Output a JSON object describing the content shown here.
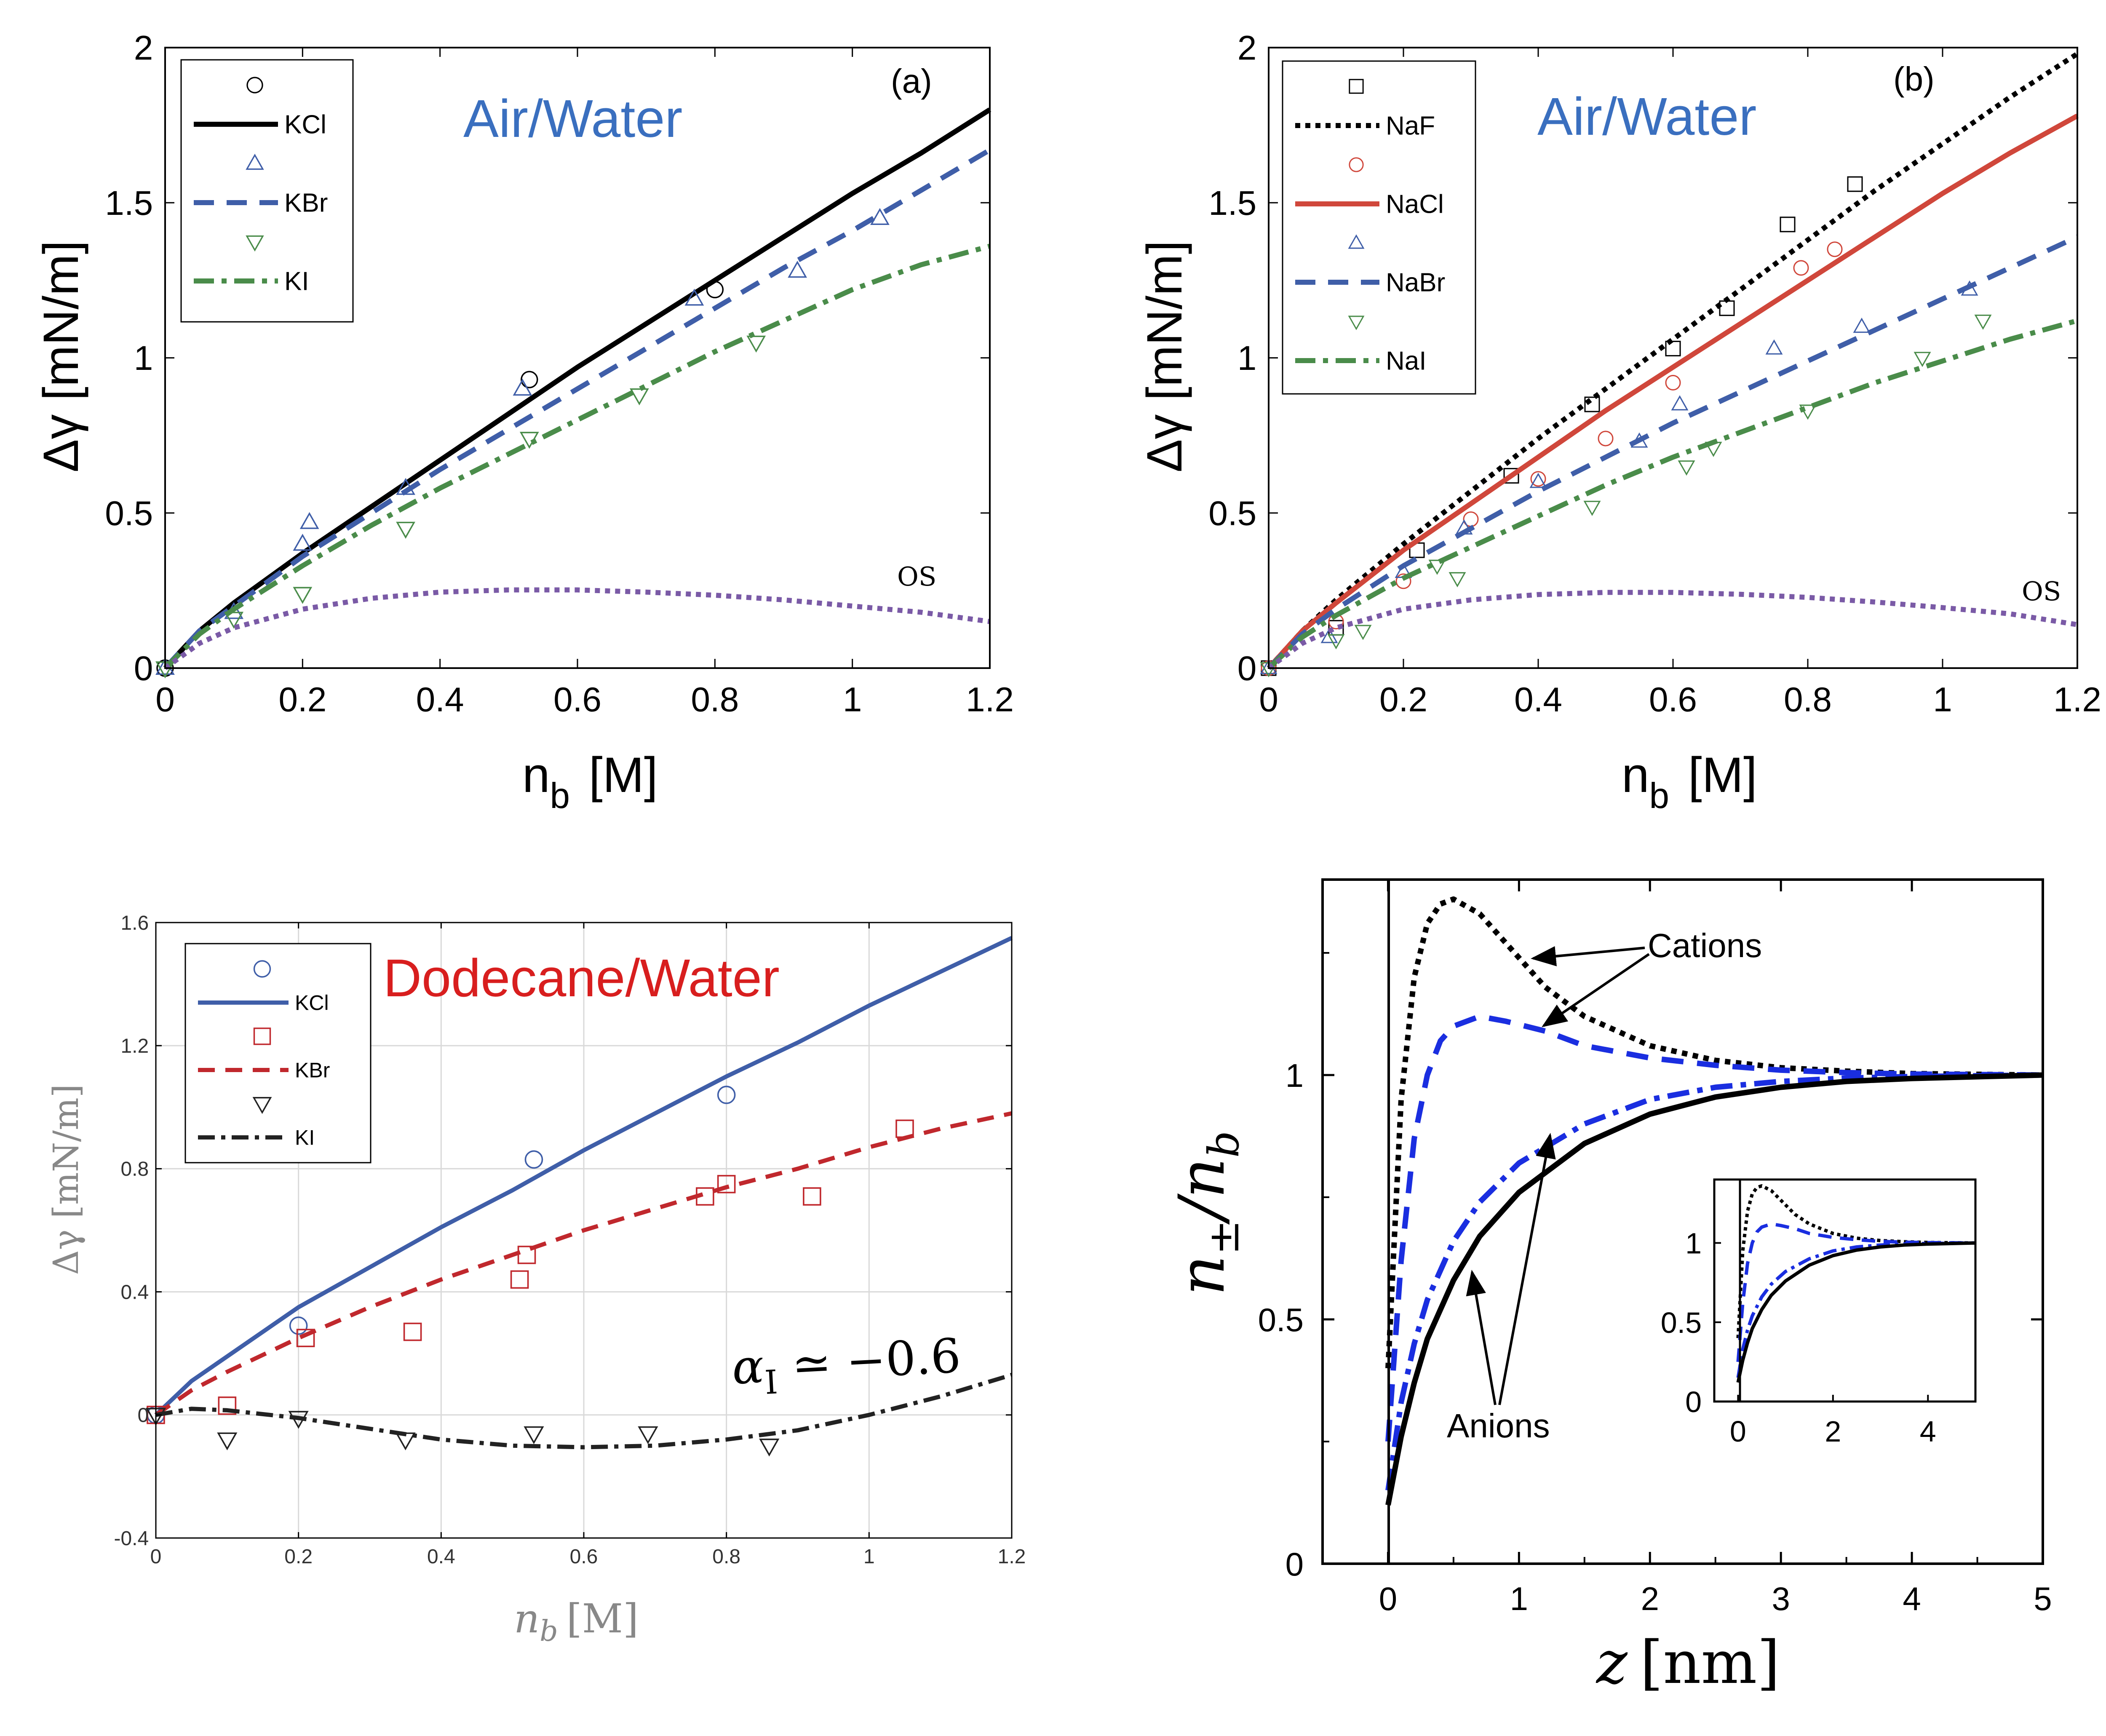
{
  "chart_data": [
    {
      "type": "line",
      "panel_label": "(a)",
      "annotation": "Air/Water",
      "xlabel_main": "n",
      "xlabel_sub": "b",
      "xlabel_unit": "[M]",
      "ylabel": "Δγ [mN/m]",
      "xlim": [
        0,
        1.2
      ],
      "ylim": [
        0,
        2
      ],
      "xticks": [
        "0",
        "0.2",
        "0.4",
        "0.6",
        "0.8",
        "1",
        "1.2"
      ],
      "yticks": [
        "0",
        "0.5",
        "1",
        "1.5",
        "2"
      ],
      "grid": false,
      "legend_position": "top-left",
      "series": [
        {
          "name": "KCl",
          "color": "#000000",
          "dash": "solid",
          "marker": "circle",
          "curve_x": [
            0,
            0.05,
            0.1,
            0.2,
            0.3,
            0.4,
            0.5,
            0.6,
            0.7,
            0.8,
            0.9,
            1.0,
            1.1,
            1.2
          ],
          "curve_y": [
            0,
            0.12,
            0.21,
            0.37,
            0.52,
            0.67,
            0.82,
            0.97,
            1.11,
            1.25,
            1.39,
            1.53,
            1.66,
            1.8
          ],
          "points_x": [
            0,
            0.53,
            0.8
          ],
          "points_y": [
            0,
            0.93,
            1.22
          ]
        },
        {
          "name": "KBr",
          "color": "#3f5ea8",
          "dash": "dashed",
          "marker": "triangle-up",
          "curve_x": [
            0,
            0.05,
            0.1,
            0.2,
            0.3,
            0.4,
            0.5,
            0.6,
            0.7,
            0.8,
            0.9,
            1.0,
            1.1,
            1.2
          ],
          "curve_y": [
            0,
            0.12,
            0.2,
            0.36,
            0.5,
            0.64,
            0.77,
            0.9,
            1.03,
            1.16,
            1.29,
            1.41,
            1.54,
            1.67
          ],
          "points_x": [
            0,
            0.1,
            0.2,
            0.21,
            0.35,
            0.52,
            0.77,
            0.92,
            1.04
          ],
          "points_y": [
            0,
            0.18,
            0.4,
            0.47,
            0.58,
            0.9,
            1.19,
            1.28,
            1.45
          ]
        },
        {
          "name": "KI",
          "color": "#4a8c4a",
          "dash": "dashdot",
          "marker": "triangle-down",
          "curve_x": [
            0,
            0.05,
            0.1,
            0.2,
            0.3,
            0.4,
            0.5,
            0.6,
            0.7,
            0.8,
            0.9,
            1.0,
            1.1,
            1.2
          ],
          "curve_y": [
            0,
            0.11,
            0.19,
            0.33,
            0.46,
            0.58,
            0.69,
            0.8,
            0.91,
            1.02,
            1.12,
            1.22,
            1.3,
            1.36
          ],
          "points_x": [
            0,
            0.1,
            0.2,
            0.35,
            0.53,
            0.69,
            0.86
          ],
          "points_y": [
            0,
            0.16,
            0.24,
            0.45,
            0.74,
            0.88,
            1.05
          ]
        },
        {
          "name": "",
          "color": "#7a5aa6",
          "dash": "dotted",
          "marker": "none",
          "curve_x": [
            0,
            0.05,
            0.1,
            0.2,
            0.3,
            0.4,
            0.5,
            0.6,
            0.7,
            0.8,
            0.9,
            1.0,
            1.1,
            1.2
          ],
          "curve_y": [
            0,
            0.08,
            0.13,
            0.19,
            0.225,
            0.245,
            0.252,
            0.252,
            0.245,
            0.235,
            0.22,
            0.2,
            0.18,
            0.15
          ],
          "points_x": [],
          "points_y": [],
          "curve_label": "OS"
        }
      ]
    },
    {
      "type": "line",
      "panel_label": "(b)",
      "annotation": "Air/Water",
      "xlabel_main": "n",
      "xlabel_sub": "b",
      "xlabel_unit": "[M]",
      "ylabel": "Δγ [mN/m]",
      "xlim": [
        0,
        1.2
      ],
      "ylim": [
        0,
        2
      ],
      "xticks": [
        "0",
        "0.2",
        "0.4",
        "0.6",
        "0.8",
        "1",
        "1.2"
      ],
      "yticks": [
        "0",
        "0.5",
        "1",
        "1.5",
        "2"
      ],
      "grid": false,
      "legend_position": "top-left",
      "series": [
        {
          "name": "NaF",
          "color": "#000000",
          "dash": "dotted",
          "marker": "square",
          "curve_x": [
            0,
            0.05,
            0.1,
            0.2,
            0.3,
            0.4,
            0.5,
            0.6,
            0.7,
            0.8,
            0.9,
            1.0,
            1.1,
            1.2
          ],
          "curve_y": [
            0,
            0.12,
            0.22,
            0.4,
            0.57,
            0.74,
            0.9,
            1.06,
            1.22,
            1.38,
            1.54,
            1.69,
            1.84,
            1.98
          ],
          "points_x": [
            0,
            0.1,
            0.22,
            0.36,
            0.48,
            0.6,
            0.68,
            0.77,
            0.87
          ],
          "points_y": [
            0,
            0.13,
            0.38,
            0.62,
            0.85,
            1.03,
            1.16,
            1.43,
            1.56
          ]
        },
        {
          "name": "NaCl",
          "color": "#d0473b",
          "dash": "solid",
          "marker": "circle",
          "curve_x": [
            0,
            0.05,
            0.1,
            0.2,
            0.3,
            0.4,
            0.5,
            0.6,
            0.7,
            0.8,
            0.9,
            1.0,
            1.1,
            1.2
          ],
          "curve_y": [
            0,
            0.12,
            0.21,
            0.38,
            0.53,
            0.68,
            0.83,
            0.97,
            1.11,
            1.25,
            1.39,
            1.53,
            1.66,
            1.78
          ],
          "points_x": [
            0,
            0.1,
            0.2,
            0.3,
            0.4,
            0.5,
            0.6,
            0.79,
            0.84
          ],
          "points_y": [
            0,
            0.15,
            0.28,
            0.48,
            0.61,
            0.74,
            0.92,
            1.29,
            1.35
          ]
        },
        {
          "name": "NaBr",
          "color": "#3f5ea8",
          "dash": "dashed",
          "marker": "triangle-up",
          "curve_x": [
            0,
            0.05,
            0.1,
            0.2,
            0.3,
            0.4,
            0.5,
            0.6,
            0.7,
            0.8,
            0.9,
            1.0,
            1.1,
            1.2
          ],
          "curve_y": [
            0,
            0.11,
            0.19,
            0.33,
            0.45,
            0.57,
            0.68,
            0.79,
            0.89,
            0.99,
            1.09,
            1.19,
            1.29,
            1.39
          ],
          "points_x": [
            0,
            0.09,
            0.2,
            0.29,
            0.4,
            0.55,
            0.61,
            0.75,
            0.88,
            1.04
          ],
          "points_y": [
            0,
            0.1,
            0.31,
            0.45,
            0.6,
            0.73,
            0.85,
            1.03,
            1.1,
            1.22
          ]
        },
        {
          "name": "NaI",
          "color": "#4a8c4a",
          "dash": "dashdot",
          "marker": "triangle-down",
          "curve_x": [
            0,
            0.05,
            0.1,
            0.2,
            0.3,
            0.4,
            0.5,
            0.6,
            0.7,
            0.8,
            0.9,
            1.0,
            1.1,
            1.2
          ],
          "curve_y": [
            0,
            0.1,
            0.17,
            0.29,
            0.39,
            0.49,
            0.59,
            0.68,
            0.76,
            0.84,
            0.92,
            0.99,
            1.06,
            1.12
          ],
          "points_x": [
            0,
            0.1,
            0.14,
            0.25,
            0.28,
            0.48,
            0.62,
            0.66,
            0.8,
            0.97,
            1.06
          ],
          "points_y": [
            0,
            0.09,
            0.12,
            0.33,
            0.29,
            0.52,
            0.65,
            0.71,
            0.83,
            1.0,
            1.12
          ]
        },
        {
          "name": "",
          "color": "#7a5aa6",
          "dash": "dotted",
          "marker": "none",
          "curve_x": [
            0,
            0.05,
            0.1,
            0.2,
            0.3,
            0.4,
            0.5,
            0.6,
            0.7,
            0.8,
            0.9,
            1.0,
            1.1,
            1.2
          ],
          "curve_y": [
            0,
            0.08,
            0.13,
            0.19,
            0.22,
            0.237,
            0.244,
            0.244,
            0.238,
            0.228,
            0.213,
            0.195,
            0.175,
            0.14
          ],
          "points_x": [],
          "points_y": [],
          "curve_label": "OS"
        }
      ]
    },
    {
      "type": "line",
      "annotation": "Dodecane/Water",
      "annotation2_main": "α",
      "annotation2_sub": "I",
      "annotation2_rest": " ≃ −0.6",
      "xlabel_main": "n",
      "xlabel_sub": "b",
      "xlabel_unit": "[M]",
      "ylabel": "Δγ [mN/m]",
      "xlim": [
        0,
        1.2
      ],
      "ylim": [
        -0.4,
        1.6
      ],
      "xticks": [
        "0",
        "0.2",
        "0.4",
        "0.6",
        "0.8",
        "1",
        "1.2"
      ],
      "yticks": [
        "-0.4",
        "0",
        "0.4",
        "0.8",
        "1.2",
        "1.6"
      ],
      "grid": true,
      "legend_position": "top-left",
      "series": [
        {
          "name": "KCl",
          "color": "#3f5ea8",
          "dash": "solid",
          "marker": "circle",
          "curve_x": [
            0,
            0.05,
            0.1,
            0.2,
            0.3,
            0.4,
            0.5,
            0.6,
            0.7,
            0.8,
            0.9,
            1.0,
            1.1,
            1.2
          ],
          "curve_y": [
            0,
            0.11,
            0.19,
            0.35,
            0.48,
            0.61,
            0.73,
            0.86,
            0.98,
            1.1,
            1.21,
            1.33,
            1.44,
            1.55
          ],
          "points_x": [
            0,
            0.2,
            0.53,
            0.8
          ],
          "points_y": [
            0,
            0.29,
            0.83,
            1.04
          ]
        },
        {
          "name": "KBr",
          "color": "#c0282d",
          "dash": "dashed",
          "marker": "square",
          "curve_x": [
            0,
            0.05,
            0.1,
            0.2,
            0.3,
            0.4,
            0.5,
            0.6,
            0.7,
            0.8,
            0.9,
            1.0,
            1.1,
            1.2
          ],
          "curve_y": [
            0,
            0.08,
            0.14,
            0.25,
            0.35,
            0.44,
            0.52,
            0.6,
            0.67,
            0.74,
            0.8,
            0.87,
            0.93,
            0.98
          ],
          "points_x": [
            0,
            0.1,
            0.21,
            0.36,
            0.51,
            0.52,
            0.77,
            0.8,
            0.92,
            1.05
          ],
          "points_y": [
            0,
            0.03,
            0.25,
            0.27,
            0.44,
            0.52,
            0.71,
            0.75,
            0.71,
            0.93
          ]
        },
        {
          "name": "KI",
          "color": "#222222",
          "dash": "dashdot",
          "marker": "triangle-down",
          "curve_x": [
            0,
            0.05,
            0.1,
            0.2,
            0.3,
            0.4,
            0.5,
            0.6,
            0.7,
            0.8,
            0.9,
            1.0,
            1.1,
            1.2
          ],
          "curve_y": [
            0,
            0.02,
            0.015,
            -0.01,
            -0.045,
            -0.08,
            -0.1,
            -0.105,
            -0.1,
            -0.08,
            -0.05,
            0,
            0.06,
            0.13
          ],
          "points_x": [
            0,
            0.1,
            0.2,
            0.35,
            0.53,
            0.69,
            0.86
          ],
          "points_y": [
            0,
            -0.08,
            -0.01,
            -0.08,
            -0.06,
            -0.06,
            -0.1
          ]
        }
      ]
    },
    {
      "type": "line",
      "annotations": [
        "Cations",
        "Anions"
      ],
      "xlabel_main": "z",
      "xlabel_unit": "[nm]",
      "ylabel_main": "n",
      "ylabel_sub1": "±",
      "ylabel_sep": "/n",
      "ylabel_sub2": "b",
      "xlim": [
        -0.5,
        5
      ],
      "ylim": [
        0,
        1.4
      ],
      "xticks": [
        "0",
        "1",
        "2",
        "3",
        "4",
        "5"
      ],
      "yticks": [
        "0",
        "0.5",
        "1"
      ],
      "grid": false,
      "series": [
        {
          "color": "#000000",
          "dash": "dotted",
          "curve_x": [
            0,
            0.1,
            0.2,
            0.3,
            0.4,
            0.5,
            0.7,
            0.9,
            1.2,
            1.5,
            2.0,
            2.5,
            3.0,
            3.5,
            4.0,
            5.0
          ],
          "curve_y": [
            0.4,
            0.95,
            1.2,
            1.31,
            1.35,
            1.36,
            1.33,
            1.27,
            1.18,
            1.12,
            1.06,
            1.03,
            1.015,
            1.008,
            1.003,
            1.0
          ]
        },
        {
          "color": "#1a2ee0",
          "dash": "dashed",
          "curve_x": [
            0,
            0.1,
            0.2,
            0.3,
            0.4,
            0.5,
            0.7,
            0.9,
            1.2,
            1.5,
            2.0,
            2.5,
            3.0,
            3.5,
            4.0,
            5.0
          ],
          "curve_y": [
            0.25,
            0.62,
            0.87,
            1.0,
            1.07,
            1.1,
            1.12,
            1.11,
            1.09,
            1.06,
            1.035,
            1.02,
            1.01,
            1.005,
            1.002,
            1.0
          ]
        },
        {
          "color": "#1a2ee0",
          "dash": "dashdot",
          "curve_x": [
            0,
            0.1,
            0.2,
            0.3,
            0.5,
            0.7,
            1.0,
            1.5,
            2.0,
            2.5,
            3.0,
            3.5,
            4.0,
            5.0
          ],
          "curve_y": [
            0.15,
            0.33,
            0.45,
            0.54,
            0.66,
            0.74,
            0.82,
            0.9,
            0.95,
            0.975,
            0.987,
            0.994,
            0.997,
            1.0
          ]
        },
        {
          "color": "#000000",
          "dash": "solid",
          "curve_x": [
            0,
            0.1,
            0.2,
            0.3,
            0.5,
            0.7,
            1.0,
            1.5,
            2.0,
            2.5,
            3.0,
            3.5,
            4.0,
            5.0
          ],
          "curve_y": [
            0.12,
            0.26,
            0.37,
            0.46,
            0.58,
            0.67,
            0.76,
            0.86,
            0.92,
            0.955,
            0.975,
            0.987,
            0.993,
            1.0
          ]
        }
      ],
      "inset": {
        "xlim": [
          -0.5,
          5
        ],
        "ylim": [
          0,
          1.4
        ],
        "xticks": [
          "0",
          "2",
          "4"
        ],
        "yticks": [
          "0",
          "0.5",
          "1"
        ]
      }
    }
  ]
}
